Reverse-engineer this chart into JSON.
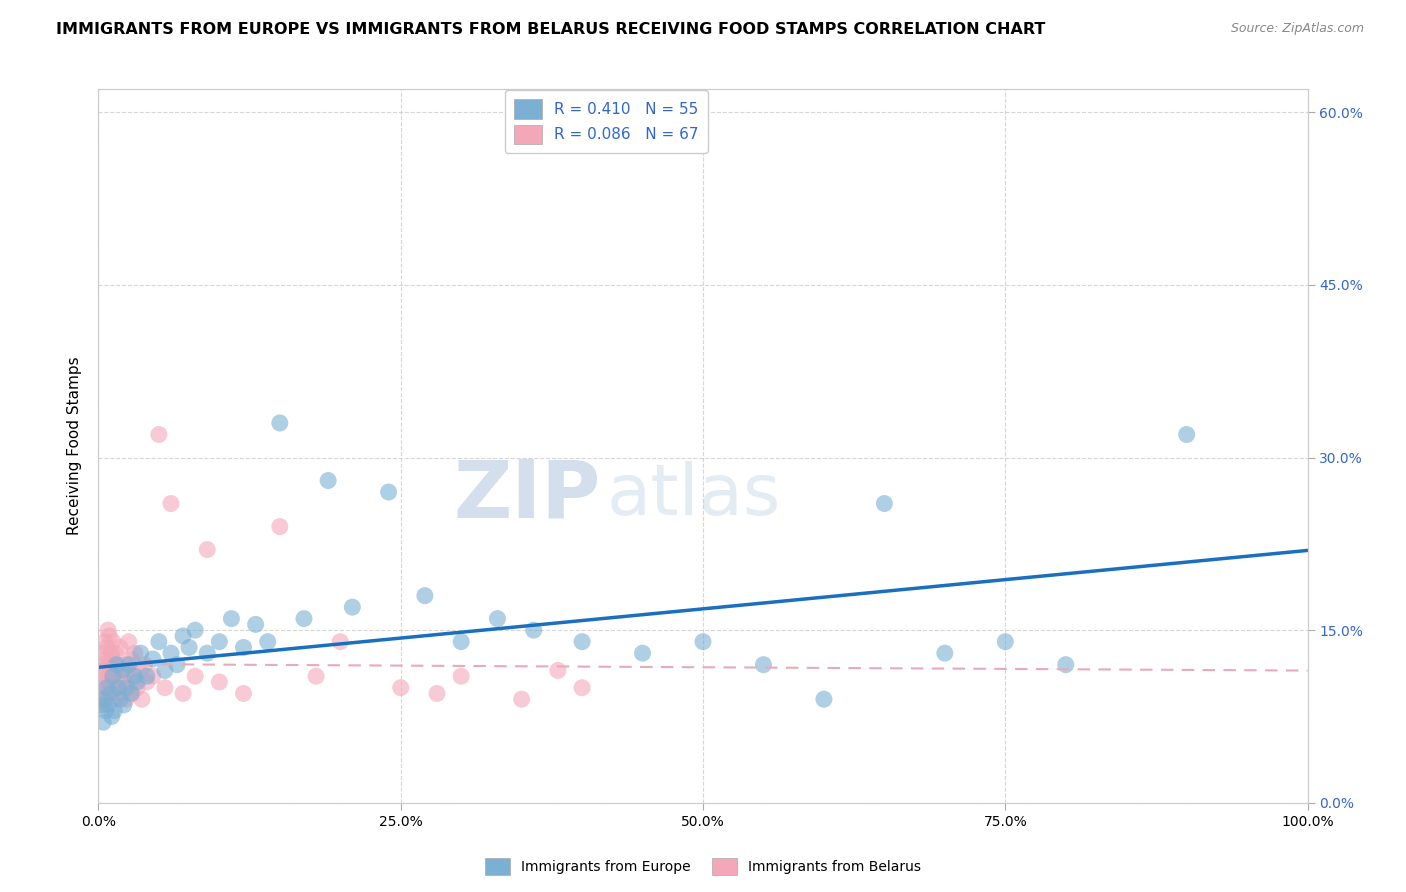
{
  "title": "IMMIGRANTS FROM EUROPE VS IMMIGRANTS FROM BELARUS RECEIVING FOOD STAMPS CORRELATION CHART",
  "source": "Source: ZipAtlas.com",
  "ylabel": "Receiving Food Stamps",
  "watermark_zip": "ZIP",
  "watermark_atlas": "atlas",
  "xlim": [
    0,
    100
  ],
  "ylim": [
    0,
    62
  ],
  "xtick_vals": [
    0,
    25,
    50,
    75,
    100
  ],
  "ytick_vals": [
    0,
    15,
    30,
    45,
    60
  ],
  "blue_R": 0.41,
  "blue_N": 55,
  "pink_R": 0.086,
  "pink_N": 67,
  "blue_color": "#7bafd4",
  "pink_color": "#f4a7b9",
  "blue_line_color": "#1a6fbe",
  "pink_line_color": "#e8aab8",
  "tick_color": "#3366cc",
  "legend_label_blue": "Immigrants from Europe",
  "legend_label_pink": "Immigrants from Belarus",
  "background_color": "#ffffff",
  "grid_color": "#cccccc",
  "blue_x": [
    0.2,
    0.4,
    0.5,
    0.6,
    0.7,
    0.8,
    1.0,
    1.1,
    1.2,
    1.3,
    1.5,
    1.6,
    1.8,
    2.0,
    2.1,
    2.3,
    2.5,
    2.7,
    3.0,
    3.2,
    3.5,
    4.0,
    4.5,
    5.0,
    5.5,
    6.0,
    6.5,
    7.0,
    7.5,
    8.0,
    9.0,
    10.0,
    11.0,
    12.0,
    13.0,
    14.0,
    15.0,
    17.0,
    19.0,
    21.0,
    24.0,
    27.0,
    30.0,
    33.0,
    36.0,
    40.0,
    45.0,
    50.0,
    55.0,
    60.0,
    65.0,
    70.0,
    75.0,
    80.0,
    90.0
  ],
  "blue_y": [
    8.5,
    7.0,
    9.0,
    8.0,
    10.0,
    8.5,
    9.5,
    7.5,
    11.0,
    8.0,
    12.0,
    10.0,
    9.0,
    11.5,
    8.5,
    10.0,
    12.0,
    9.5,
    11.0,
    10.5,
    13.0,
    11.0,
    12.5,
    14.0,
    11.5,
    13.0,
    12.0,
    14.5,
    13.5,
    15.0,
    13.0,
    14.0,
    16.0,
    13.5,
    15.5,
    14.0,
    33.0,
    16.0,
    28.0,
    17.0,
    27.0,
    18.0,
    14.0,
    16.0,
    15.0,
    14.0,
    13.0,
    14.0,
    12.0,
    9.0,
    26.0,
    13.0,
    14.0,
    12.0,
    32.0
  ],
  "pink_x": [
    0.1,
    0.15,
    0.2,
    0.25,
    0.3,
    0.35,
    0.4,
    0.45,
    0.5,
    0.55,
    0.6,
    0.65,
    0.7,
    0.75,
    0.8,
    0.85,
    0.9,
    0.95,
    1.0,
    1.05,
    1.1,
    1.15,
    1.2,
    1.25,
    1.3,
    1.35,
    1.4,
    1.45,
    1.5,
    1.6,
    1.7,
    1.8,
    1.9,
    2.0,
    2.1,
    2.2,
    2.3,
    2.4,
    2.5,
    2.6,
    2.7,
    2.8,
    2.9,
    3.0,
    3.2,
    3.4,
    3.6,
    3.8,
    4.0,
    4.5,
    5.0,
    5.5,
    6.0,
    7.0,
    8.0,
    9.0,
    10.0,
    12.0,
    15.0,
    18.0,
    20.0,
    25.0,
    28.0,
    30.0,
    35.0,
    38.0,
    40.0
  ],
  "pink_y": [
    10.0,
    9.0,
    11.0,
    8.5,
    12.0,
    10.5,
    13.0,
    9.0,
    14.0,
    11.0,
    12.5,
    10.0,
    13.5,
    11.5,
    15.0,
    12.0,
    14.5,
    10.5,
    11.0,
    13.0,
    9.5,
    12.5,
    14.0,
    10.0,
    11.5,
    9.0,
    13.0,
    10.5,
    12.0,
    11.0,
    10.0,
    13.5,
    9.5,
    11.0,
    10.5,
    12.0,
    9.0,
    11.5,
    14.0,
    10.0,
    12.5,
    9.5,
    11.0,
    13.0,
    10.0,
    11.5,
    9.0,
    12.0,
    10.5,
    11.0,
    32.0,
    10.0,
    26.0,
    9.5,
    11.0,
    22.0,
    10.5,
    9.5,
    24.0,
    11.0,
    14.0,
    10.0,
    9.5,
    11.0,
    9.0,
    11.5,
    10.0
  ]
}
